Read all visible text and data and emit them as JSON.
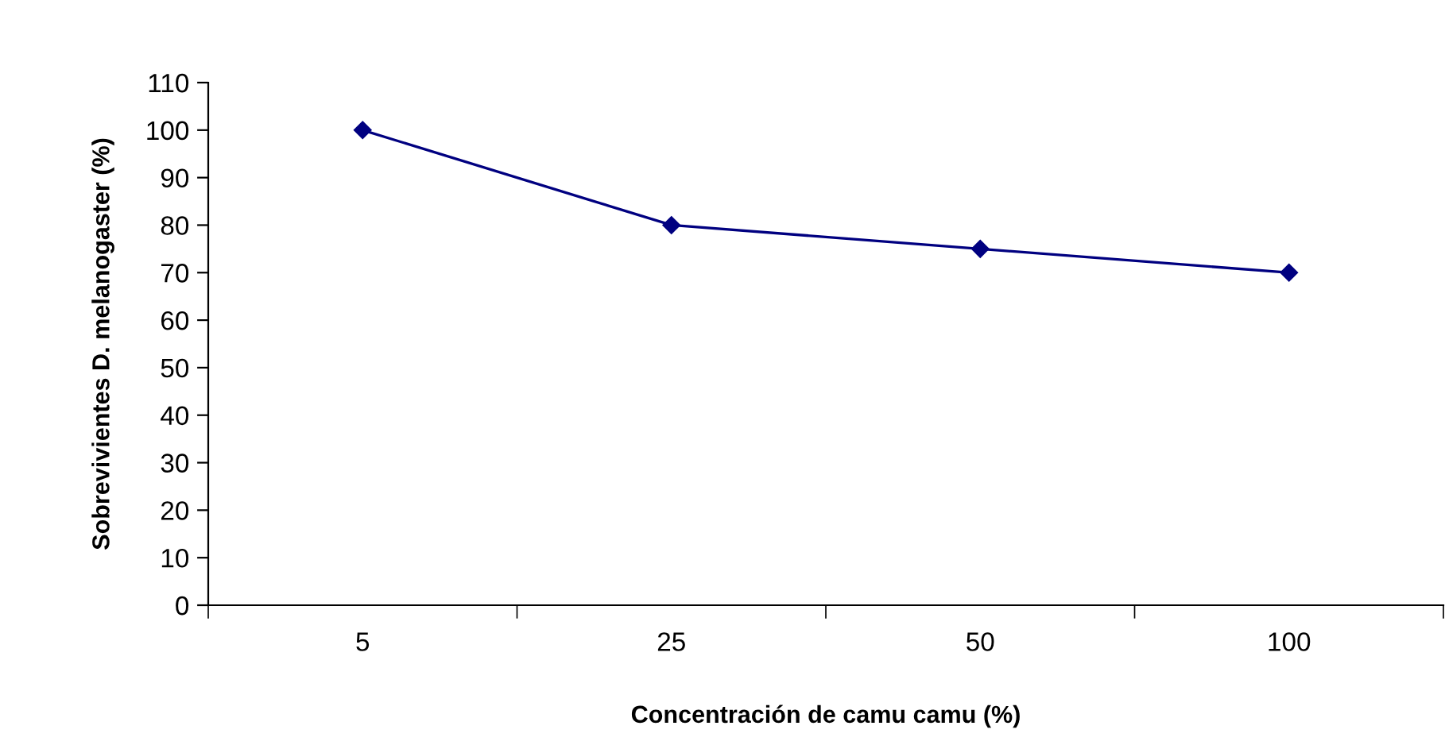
{
  "chart_data": {
    "type": "line",
    "xlabel": "Concentración de camu camu (%)",
    "ylabel": "Sobrevivientes D. melanogaster (%)",
    "categories": [
      "5",
      "25",
      "50",
      "100"
    ],
    "series": [
      {
        "color": "#000080",
        "values": [
          100,
          80,
          75,
          70
        ]
      }
    ],
    "ylim": [
      0,
      110
    ],
    "yticks": [
      0,
      10,
      20,
      30,
      40,
      50,
      60,
      70,
      80,
      90,
      100,
      110
    ],
    "marker": "diamond",
    "line_style": "solid"
  }
}
